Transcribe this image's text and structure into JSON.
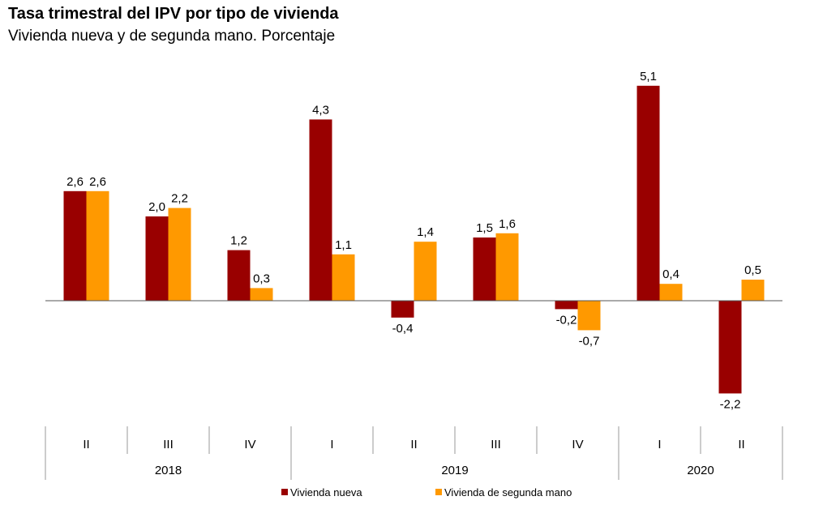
{
  "chart_data": {
    "type": "bar",
    "title": "Tasa trimestral del IPV por tipo de vivienda",
    "subtitle": "Vivienda nueva y de segunda mano. Porcentaje",
    "categories": [
      "II",
      "III",
      "IV",
      "I",
      "II",
      "III",
      "IV",
      "I",
      "II"
    ],
    "years": [
      {
        "label": "2018",
        "span": 3
      },
      {
        "label": "2019",
        "span": 4
      },
      {
        "label": "2020",
        "span": 2
      }
    ],
    "series": [
      {
        "name": "Vivienda nueva",
        "color": "#990000",
        "values": [
          2.6,
          2.0,
          1.2,
          4.3,
          -0.4,
          1.5,
          -0.2,
          5.1,
          -2.2
        ],
        "labels": [
          "2,6",
          "2,0",
          "1,2",
          "4,3",
          "-0,4",
          "1,5",
          "-0,2",
          "5,1",
          "-2,2"
        ]
      },
      {
        "name": "Vivienda de segunda mano",
        "color": "#FF9900",
        "values": [
          2.6,
          2.2,
          0.3,
          1.1,
          1.4,
          1.6,
          -0.7,
          0.4,
          0.5
        ],
        "labels": [
          "2,6",
          "2,2",
          "0,3",
          "1,1",
          "1,4",
          "1,6",
          "-0,7",
          "0,4",
          "0,5"
        ]
      }
    ],
    "ylim": [
      -2.8,
      5.6
    ],
    "grid": false,
    "legend_position": "bottom"
  }
}
